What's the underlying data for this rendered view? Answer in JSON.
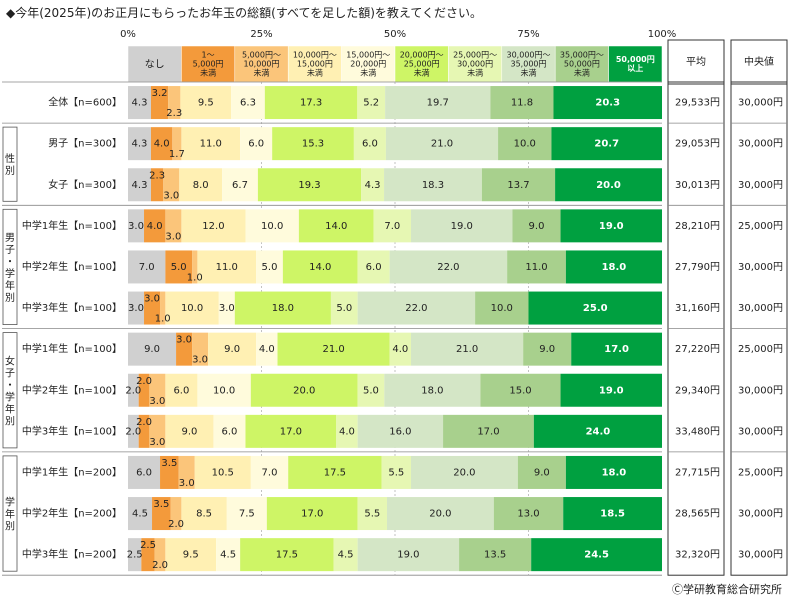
{
  "chart_data": {
    "type": "bar",
    "stacked": "percent",
    "orientation": "horizontal",
    "title": "◆今年(2025年)のお正月にもらったお年玉の総額(すべてを足した額)を教えてください。",
    "x_ticks": [
      "0%",
      "25%",
      "50%",
      "75%",
      "100%"
    ],
    "xlim": [
      0,
      100
    ],
    "series": [
      {
        "name": "なし",
        "color": "#d0d0d0"
      },
      {
        "name": "1～\n5,000円\n未満",
        "color": "#f39a3b"
      },
      {
        "name": "5,000円～\n10,000円\n未満",
        "color": "#fbc57a"
      },
      {
        "name": "10,000円～\n15,000円\n未満",
        "color": "#fff0b3"
      },
      {
        "name": "15,000円～\n20,000円\n未満",
        "color": "#fffbdc"
      },
      {
        "name": "20,000円～\n25,000円\n未満",
        "color": "#cef566"
      },
      {
        "name": "25,000円～\n30,000円\n未満",
        "color": "#e6f7b3"
      },
      {
        "name": "30,000円～\n35,000円\n未満",
        "color": "#d4e6c6"
      },
      {
        "name": "35,000円～\n50,000円\n未満",
        "color": "#a8d08d"
      },
      {
        "name": "50,000円\n以上",
        "color": "#00a040"
      }
    ],
    "categories": [
      {
        "label": "全体【n=600】",
        "values": [
          4.3,
          3.2,
          2.3,
          9.5,
          6.3,
          17.3,
          5.2,
          19.7,
          11.8,
          20.3
        ],
        "mean": "29,533円",
        "median": "30,000円"
      },
      {
        "label": "男子【n=300】",
        "values": [
          4.3,
          4.0,
          1.7,
          11.0,
          6.0,
          15.3,
          6.0,
          21.0,
          10.0,
          20.7
        ],
        "mean": "29,053円",
        "median": "30,000円"
      },
      {
        "label": "女子【n=300】",
        "values": [
          4.3,
          2.3,
          3.0,
          8.0,
          6.7,
          19.3,
          4.3,
          18.3,
          13.7,
          20.0
        ],
        "mean": "30,013円",
        "median": "30,000円"
      },
      {
        "label": "中学1年生【n=100】",
        "values": [
          3.0,
          4.0,
          3.0,
          12.0,
          10.0,
          14.0,
          7.0,
          19.0,
          9.0,
          19.0
        ],
        "mean": "28,210円",
        "median": "25,000円"
      },
      {
        "label": "中学2年生【n=100】",
        "values": [
          7.0,
          5.0,
          1.0,
          11.0,
          5.0,
          14.0,
          6.0,
          22.0,
          11.0,
          18.0
        ],
        "mean": "27,790円",
        "median": "30,000円"
      },
      {
        "label": "中学3年生【n=100】",
        "values": [
          3.0,
          3.0,
          1.0,
          10.0,
          3.0,
          18.0,
          5.0,
          22.0,
          10.0,
          25.0
        ],
        "mean": "31,160円",
        "median": "30,000円"
      },
      {
        "label": "中学1年生【n=100】",
        "values": [
          9.0,
          3.0,
          3.0,
          9.0,
          4.0,
          21.0,
          4.0,
          21.0,
          9.0,
          17.0
        ],
        "mean": "27,220円",
        "median": "25,000円"
      },
      {
        "label": "中学2年生【n=100】",
        "values": [
          2.0,
          2.0,
          3.0,
          6.0,
          10.0,
          20.0,
          5.0,
          18.0,
          15.0,
          19.0
        ],
        "mean": "29,340円",
        "median": "30,000円"
      },
      {
        "label": "中学3年生【n=100】",
        "values": [
          2.0,
          2.0,
          3.0,
          9.0,
          6.0,
          17.0,
          4.0,
          16.0,
          17.0,
          24.0
        ],
        "mean": "33,480円",
        "median": "30,000円"
      },
      {
        "label": "中学1年生【n=200】",
        "values": [
          6.0,
          3.5,
          3.0,
          10.5,
          7.0,
          17.5,
          5.5,
          20.0,
          9.0,
          18.0
        ],
        "mean": "27,715円",
        "median": "25,000円"
      },
      {
        "label": "中学2年生【n=200】",
        "values": [
          4.5,
          3.5,
          2.0,
          8.5,
          7.5,
          17.0,
          5.5,
          20.0,
          13.0,
          18.5
        ],
        "mean": "28,565円",
        "median": "30,000円"
      },
      {
        "label": "中学3年生【n=200】",
        "values": [
          2.5,
          2.5,
          2.0,
          9.5,
          4.5,
          17.5,
          4.5,
          19.0,
          13.5,
          24.5
        ],
        "mean": "32,320円",
        "median": "30,000円"
      }
    ],
    "groups": [
      {
        "label": "性別",
        "start": 1,
        "end": 2
      },
      {
        "label": "男子・学年別",
        "start": 3,
        "end": 5
      },
      {
        "label": "女子・学年別",
        "start": 6,
        "end": 8
      },
      {
        "label": "学年別",
        "start": 9,
        "end": 11
      }
    ],
    "columns": {
      "mean_header": "平均",
      "median_header": "中央値"
    },
    "legend_position": "top",
    "copyright": "Ⓒ学研教育総合研究所"
  }
}
